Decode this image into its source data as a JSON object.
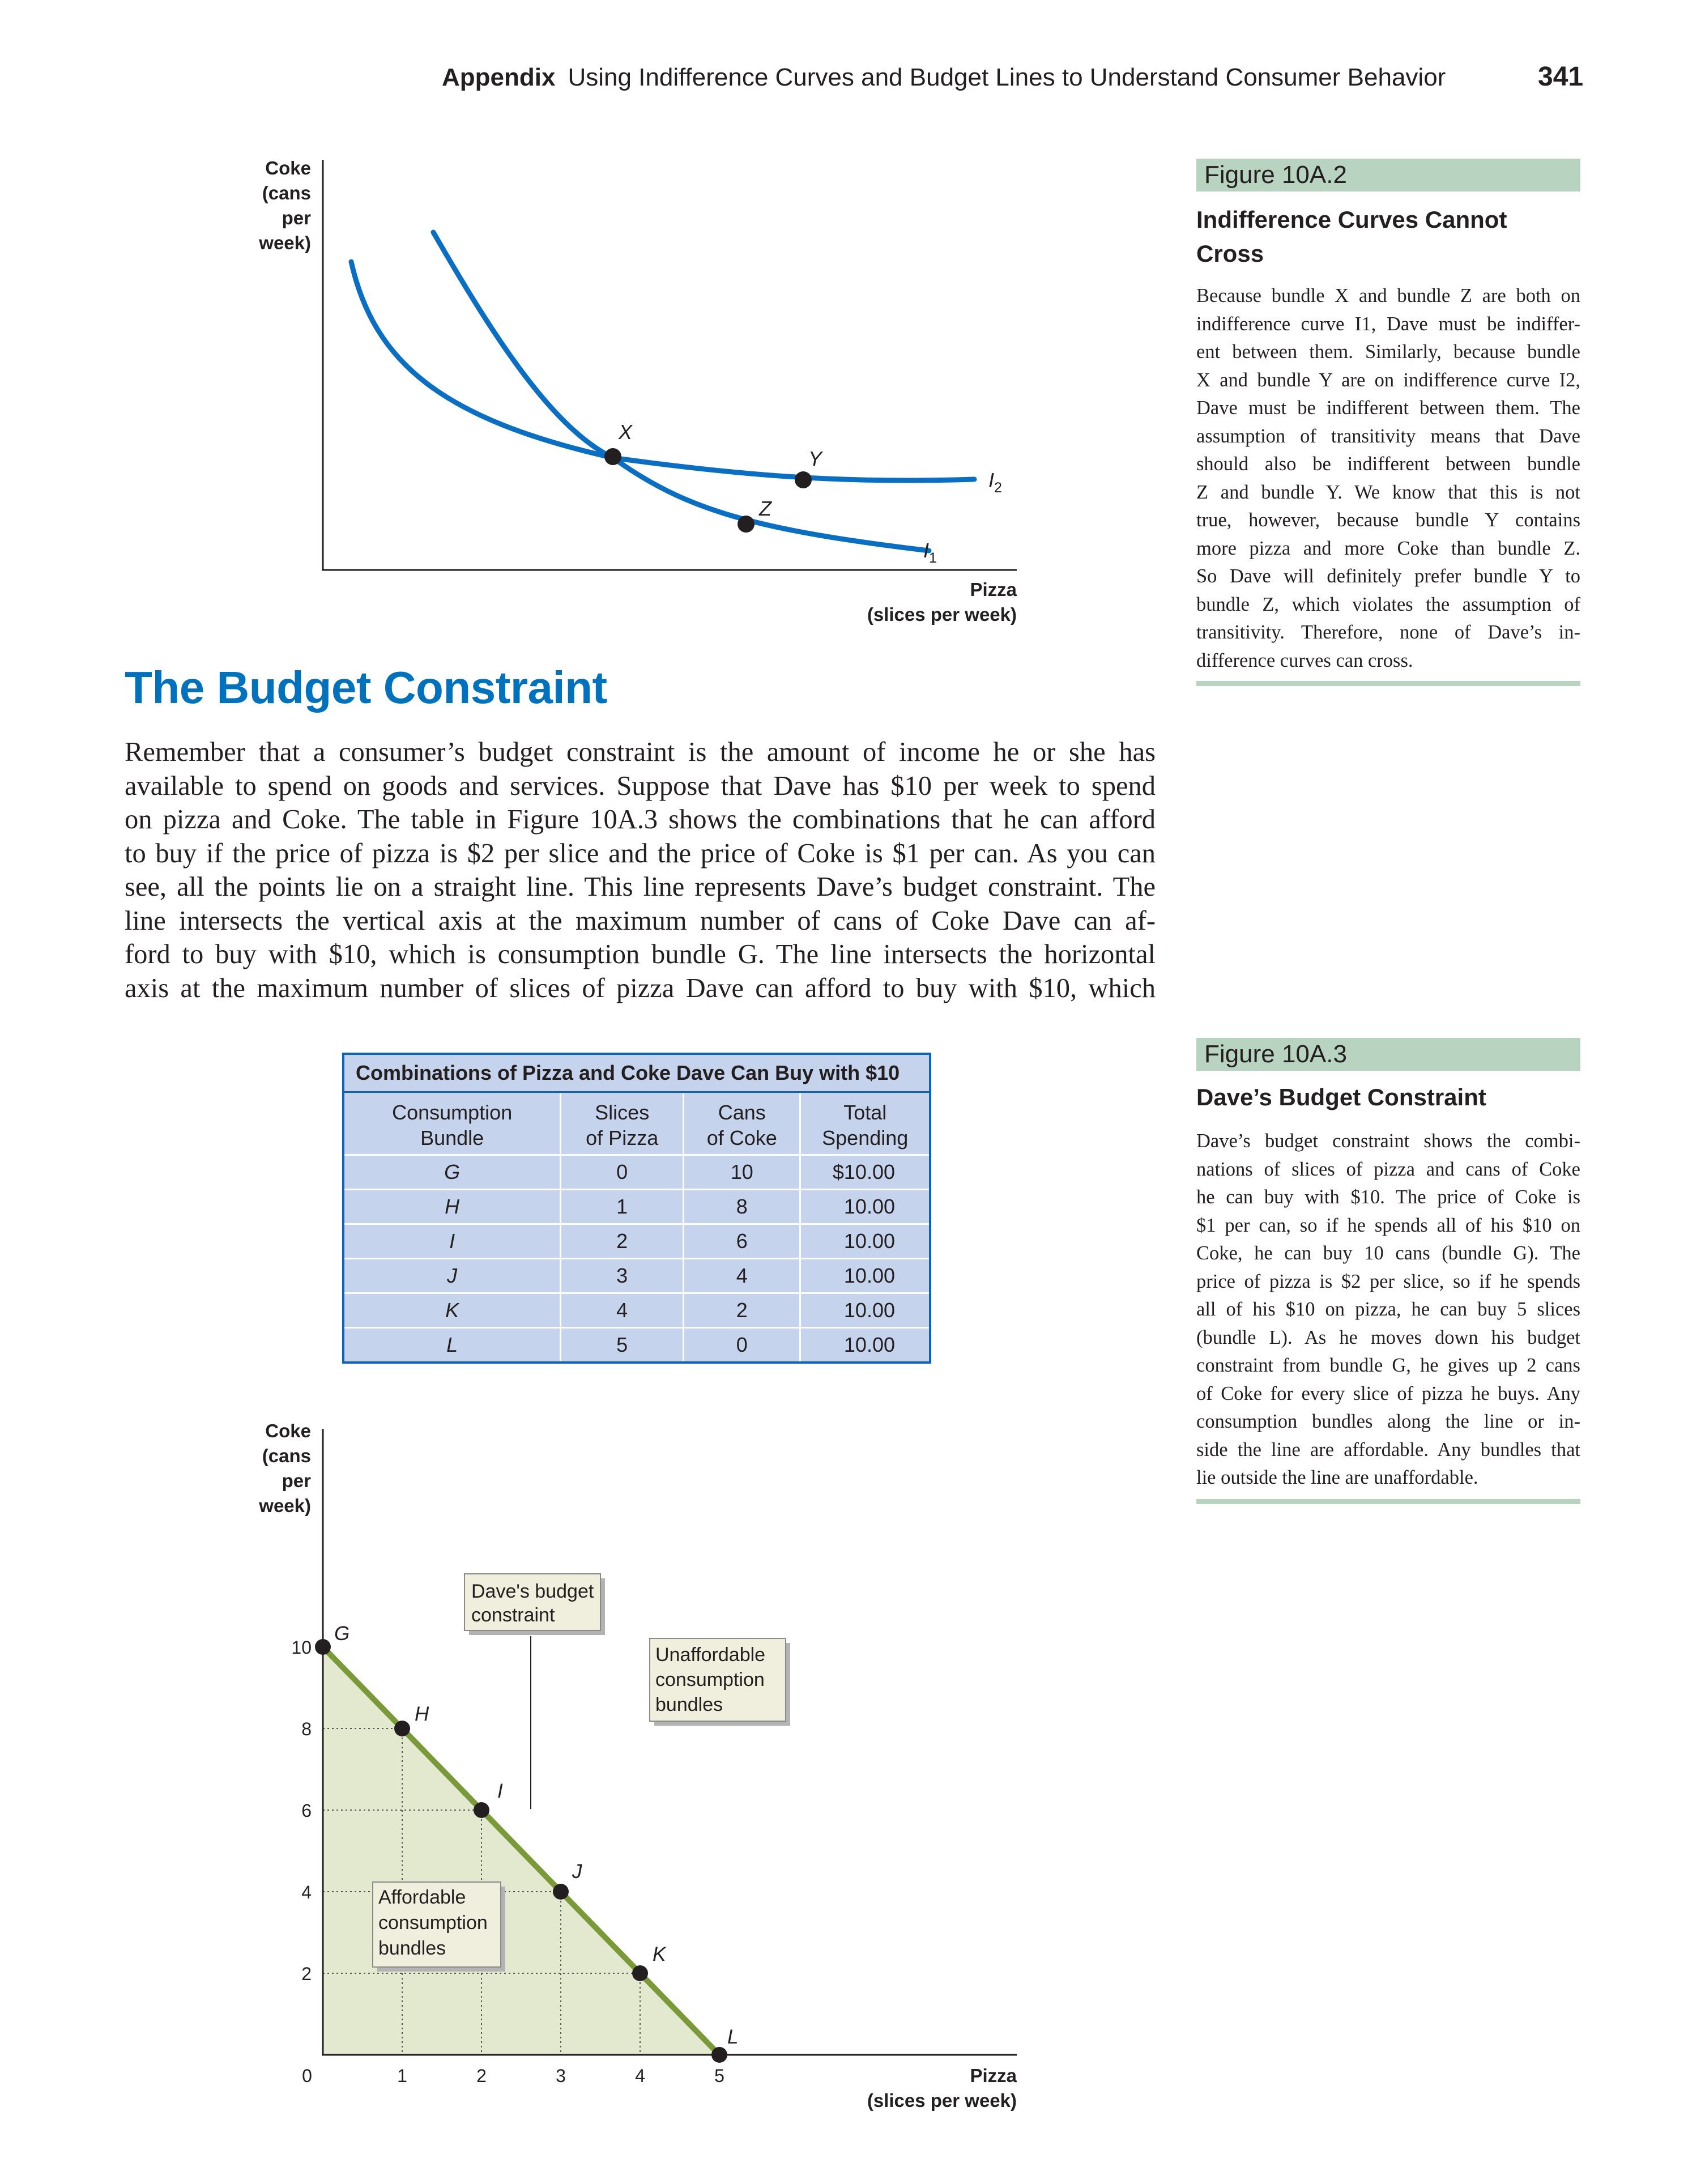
{
  "header": {
    "section": "Appendix",
    "title": "Using Indifference Curves and Budget Lines to Understand Consumer Behavior",
    "page_number": "341"
  },
  "figure_10a2": {
    "tag": "Figure 10A.2",
    "title_line1": "Indifference Curves Cannot",
    "title_line2": "Cross",
    "caption_lines": [
      "Because bundle X and bundle Z are both on",
      "indifference curve I1, Dave must be indiffer-",
      "ent between them. Similarly, because bundle",
      "X and bundle Y are on indifference curve I2,",
      "Dave must be indifferent between them. The",
      "assumption of transitivity means that Dave",
      "should also be indifferent between bundle",
      "Z and bundle Y. We know that this is not",
      "true, however, because bundle Y contains",
      "more pizza and more Coke than bundle Z.",
      "So Dave will definitely prefer bundle Y to",
      "bundle Z, which violates the assumption of",
      "transitivity. Therefore, none of Dave’s in-",
      "difference curves can cross."
    ]
  },
  "figure_10a3": {
    "tag": "Figure 10A.3",
    "title": "Dave’s Budget Constraint",
    "caption_lines": [
      "Dave’s budget constraint shows the combi-",
      "nations of slices of pizza and cans of Coke",
      "he can buy with $10. The price of Coke is",
      "$1 per can, so if he spends all of his $10 on",
      "Coke, he can buy 10 cans (bundle G). The",
      "price of pizza is $2 per slice, so if he spends",
      "all of his $10 on pizza, he can buy 5 slices",
      "(bundle L). As he moves down his budget",
      "constraint from bundle G, he gives up 2 cans",
      "of Coke for every slice of pizza he buys. Any",
      "consumption bundles along the line or in-",
      "side the line are affordable. Any bundles that",
      "lie outside the line are unaffordable."
    ]
  },
  "section_heading": "The Budget Constraint",
  "body_lines": [
    "Remember that a consumer’s budget constraint is the amount of income he or she has",
    "available to spend on goods and services. Suppose that Dave has $10 per week to spend",
    "on pizza and Coke. The table in Figure 10A.3 shows the combinations that he can afford",
    "to buy if the price of pizza is $2 per slice and the price of Coke is $1 per can. As you can",
    "see, all the points lie on a straight line. This line represents Dave’s budget constraint. The",
    "line intersects the vertical axis at the maximum number of cans of Coke Dave can af-",
    "ford to buy with $10, which is consumption bundle G. The line intersects the horizontal",
    "axis at the maximum number of slices of pizza Dave can afford to buy with $10, which"
  ],
  "table": {
    "title": "Combinations of Pizza and Coke Dave Can Buy with $10",
    "headers": [
      [
        "Consumption",
        "Bundle"
      ],
      [
        "Slices",
        "of Pizza"
      ],
      [
        "Cans",
        "of Coke"
      ],
      [
        "Total",
        "Spending"
      ]
    ],
    "rows": [
      [
        "G",
        "0",
        "10",
        "$10.00"
      ],
      [
        "H",
        "1",
        "8",
        "10.00"
      ],
      [
        "I",
        "2",
        "6",
        "10.00"
      ],
      [
        "J",
        "3",
        "4",
        "10.00"
      ],
      [
        "K",
        "4",
        "2",
        "10.00"
      ],
      [
        "L",
        "5",
        "0",
        "10.00"
      ]
    ]
  },
  "chart_data": [
    {
      "type": "line",
      "ylabel_lines": [
        "Coke",
        "(cans",
        "per",
        "week)"
      ],
      "xlabel_lines": [
        "Pizza",
        "(slices per week)"
      ],
      "series": [
        {
          "name": "I1",
          "label_main": "I",
          "label_sub": "1"
        },
        {
          "name": "I2",
          "label_main": "I",
          "label_sub": "2"
        }
      ],
      "points": [
        {
          "name": "X"
        },
        {
          "name": "Y"
        },
        {
          "name": "Z"
        }
      ],
      "colors": {
        "curve": "#0a6fc2",
        "point": "#231f20"
      }
    },
    {
      "type": "line",
      "ylabel_lines": [
        "Coke",
        "(cans",
        "per",
        "week)"
      ],
      "xlabel_lines": [
        "Pizza",
        "(slices per week)"
      ],
      "x_ticks": [
        "0",
        "1",
        "2",
        "3",
        "4",
        "5"
      ],
      "y_ticks": [
        "2",
        "4",
        "6",
        "8",
        "10"
      ],
      "xlim": [
        0,
        8.75
      ],
      "ylim": [
        0,
        10.5
      ],
      "series": [
        {
          "name": "Dave's budget constraint",
          "x": [
            0,
            1,
            2,
            3,
            4,
            5
          ],
          "y": [
            10,
            8,
            6,
            4,
            2,
            0
          ]
        }
      ],
      "points": [
        {
          "label": "G",
          "x": 0,
          "y": 10
        },
        {
          "label": "H",
          "x": 1,
          "y": 8
        },
        {
          "label": "I",
          "x": 2,
          "y": 6
        },
        {
          "label": "J",
          "x": 3,
          "y": 4
        },
        {
          "label": "K",
          "x": 4,
          "y": 2
        },
        {
          "label": "L",
          "x": 5,
          "y": 0
        }
      ],
      "annotations": {
        "budget_line_lines": [
          "Dave's budget",
          "constraint"
        ],
        "unaffordable_lines": [
          "Unaffordable",
          "consumption",
          "bundles"
        ],
        "affordable_lines": [
          "Affordable",
          "consumption",
          "bundles"
        ]
      },
      "colors": {
        "budget_line": "#7a9a3a",
        "affordable_fill": "#e3e9cf",
        "label_box": "#f0eedc"
      }
    }
  ]
}
